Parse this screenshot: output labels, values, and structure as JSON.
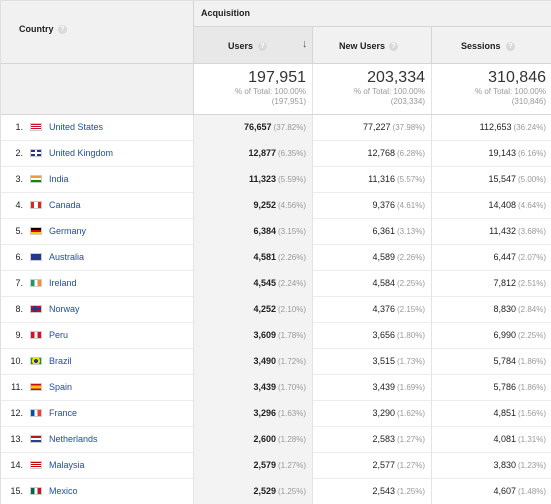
{
  "header": {
    "country_label": "Country",
    "acquisition_label": "Acquisition",
    "users_label": "Users",
    "new_users_label": "New Users",
    "sessions_label": "Sessions",
    "help_glyph": "?",
    "sort_glyph": "↓"
  },
  "totals": {
    "users": "197,951",
    "users_pct": "% of Total: 100.00%",
    "users_sub": "(197,951)",
    "new_users": "203,334",
    "new_users_pct": "% of Total: 100.00%",
    "new_users_sub": "(203,334)",
    "sessions": "310,846",
    "sessions_pct": "% of Total: 100.00%",
    "sessions_sub": "(310,846)"
  },
  "rows": [
    {
      "index": "1.",
      "country": "United States",
      "flag": "us-flag-icon",
      "users": "76,657",
      "users_pct": "(37.82%)",
      "new_users": "77,227",
      "new_users_pct": "(37.98%)",
      "sessions": "112,653",
      "sessions_pct": "(36.24%)"
    },
    {
      "index": "2.",
      "country": "United Kingdom",
      "flag": "uk-flag-icon",
      "users": "12,877",
      "users_pct": "(6.35%)",
      "new_users": "12,768",
      "new_users_pct": "(6.28%)",
      "sessions": "19,143",
      "sessions_pct": "(6.16%)"
    },
    {
      "index": "3.",
      "country": "India",
      "flag": "in-flag-icon",
      "users": "11,323",
      "users_pct": "(5.59%)",
      "new_users": "11,316",
      "new_users_pct": "(5.57%)",
      "sessions": "15,547",
      "sessions_pct": "(5.00%)"
    },
    {
      "index": "4.",
      "country": "Canada",
      "flag": "ca-flag-icon",
      "users": "9,252",
      "users_pct": "(4.56%)",
      "new_users": "9,376",
      "new_users_pct": "(4.61%)",
      "sessions": "14,408",
      "sessions_pct": "(4.64%)"
    },
    {
      "index": "5.",
      "country": "Germany",
      "flag": "de-flag-icon",
      "users": "6,384",
      "users_pct": "(3.15%)",
      "new_users": "6,361",
      "new_users_pct": "(3.13%)",
      "sessions": "11,432",
      "sessions_pct": "(3.68%)"
    },
    {
      "index": "6.",
      "country": "Australia",
      "flag": "au-flag-icon",
      "users": "4,581",
      "users_pct": "(2.26%)",
      "new_users": "4,589",
      "new_users_pct": "(2.26%)",
      "sessions": "6,447",
      "sessions_pct": "(2.07%)"
    },
    {
      "index": "7.",
      "country": "Ireland",
      "flag": "ie-flag-icon",
      "users": "4,545",
      "users_pct": "(2.24%)",
      "new_users": "4,584",
      "new_users_pct": "(2.25%)",
      "sessions": "7,812",
      "sessions_pct": "(2.51%)"
    },
    {
      "index": "8.",
      "country": "Norway",
      "flag": "no-flag-icon",
      "users": "4,252",
      "users_pct": "(2.10%)",
      "new_users": "4,376",
      "new_users_pct": "(2.15%)",
      "sessions": "8,830",
      "sessions_pct": "(2.84%)"
    },
    {
      "index": "9.",
      "country": "Peru",
      "flag": "pe-flag-icon",
      "users": "3,609",
      "users_pct": "(1.78%)",
      "new_users": "3,656",
      "new_users_pct": "(1.80%)",
      "sessions": "6,990",
      "sessions_pct": "(2.25%)"
    },
    {
      "index": "10.",
      "country": "Brazil",
      "flag": "br-flag-icon",
      "users": "3,490",
      "users_pct": "(1.72%)",
      "new_users": "3,515",
      "new_users_pct": "(1.73%)",
      "sessions": "5,784",
      "sessions_pct": "(1.86%)"
    },
    {
      "index": "11.",
      "country": "Spain",
      "flag": "es-flag-icon",
      "users": "3,439",
      "users_pct": "(1.70%)",
      "new_users": "3,439",
      "new_users_pct": "(1.69%)",
      "sessions": "5,786",
      "sessions_pct": "(1.86%)"
    },
    {
      "index": "12.",
      "country": "France",
      "flag": "fr-flag-icon",
      "users": "3,296",
      "users_pct": "(1.63%)",
      "new_users": "3,290",
      "new_users_pct": "(1.62%)",
      "sessions": "4,851",
      "sessions_pct": "(1.56%)"
    },
    {
      "index": "13.",
      "country": "Netherlands",
      "flag": "nl-flag-icon",
      "users": "2,600",
      "users_pct": "(1.28%)",
      "new_users": "2,583",
      "new_users_pct": "(1.27%)",
      "sessions": "4,081",
      "sessions_pct": "(1.31%)"
    },
    {
      "index": "14.",
      "country": "Malaysia",
      "flag": "my-flag-icon",
      "users": "2,579",
      "users_pct": "(1.27%)",
      "new_users": "2,577",
      "new_users_pct": "(1.27%)",
      "sessions": "3,830",
      "sessions_pct": "(1.23%)"
    },
    {
      "index": "15.",
      "country": "Mexico",
      "flag": "mx-flag-icon",
      "users": "2,529",
      "users_pct": "(1.25%)",
      "new_users": "2,543",
      "new_users_pct": "(1.25%)",
      "sessions": "4,607",
      "sessions_pct": "(1.48%)"
    }
  ]
}
